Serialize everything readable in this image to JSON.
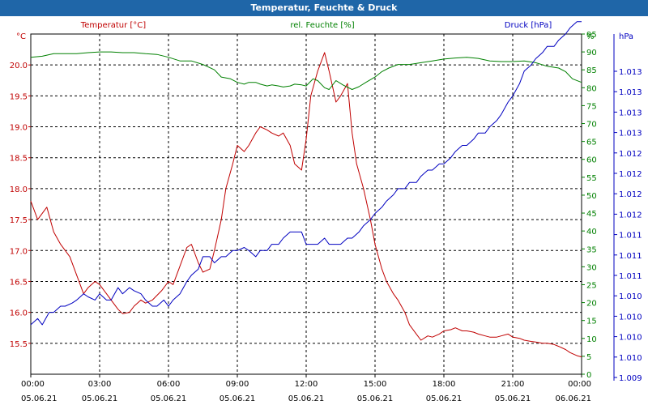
{
  "window": {
    "title": "Temperatur, Feuchte & Druck"
  },
  "chart_data": {
    "type": "line",
    "title": "Temperatur, Feuchte & Druck",
    "grid": true,
    "x_ticks": [
      {
        "time": "00:00",
        "date": "05.06.21"
      },
      {
        "time": "03:00",
        "date": "05.06.21"
      },
      {
        "time": "06:00",
        "date": "05.06.21"
      },
      {
        "time": "09:00",
        "date": "05.06.21"
      },
      {
        "time": "12:00",
        "date": "05.06.21"
      },
      {
        "time": "15:00",
        "date": "05.06.21"
      },
      {
        "time": "18:00",
        "date": "05.06.21"
      },
      {
        "time": "21:00",
        "date": "05.06.21"
      },
      {
        "time": "00:00",
        "date": "06.06.21"
      }
    ],
    "xlim": [
      0,
      24
    ],
    "axes": {
      "temperature": {
        "label": "Temperatur [°C]",
        "unit": "°C",
        "color": "#c00000",
        "ylim": [
          15.0,
          20.5
        ],
        "ticks": [
          "15.5",
          "16.0",
          "16.5",
          "17.0",
          "17.5",
          "18.0",
          "18.5",
          "19.0",
          "19.5",
          "20.0"
        ]
      },
      "humidity": {
        "label": "rel. Feuchte [%]",
        "unit": "%",
        "color": "#008000",
        "ylim": [
          0,
          95
        ],
        "ticks": [
          "0",
          "5",
          "10",
          "15",
          "20",
          "25",
          "30",
          "35",
          "40",
          "45",
          "50",
          "55",
          "60",
          "65",
          "70",
          "75",
          "80",
          "85",
          "90",
          "95"
        ]
      },
      "pressure": {
        "label": "Druck [hPa]",
        "unit": "hPa",
        "color": "#0000c0",
        "ylim": [
          1.0085,
          1.014
        ],
        "ticks": [
          "1.009",
          "1.010",
          "1.010",
          "1.010",
          "1.010",
          "1.011",
          "1.011",
          "1.011",
          "1.012",
          "1.012",
          "1.012",
          "1.012",
          "1.013",
          "1.013",
          "1.013",
          "1.013"
        ]
      }
    },
    "series": [
      {
        "name": "Temperatur",
        "axis": "temperature",
        "x": [
          0,
          0.3,
          0.7,
          1,
          1.3,
          1.7,
          2,
          2.3,
          2.5,
          2.8,
          3,
          3.3,
          3.5,
          3.8,
          4,
          4.3,
          4.5,
          4.8,
          5,
          5.3,
          5.7,
          6,
          6.2,
          6.5,
          6.8,
          7,
          7.3,
          7.5,
          7.8,
          8,
          8.3,
          8.5,
          8.8,
          9,
          9.3,
          9.5,
          9.8,
          10,
          10.3,
          10.5,
          10.8,
          11,
          11.3,
          11.5,
          11.8,
          12,
          12.2,
          12.5,
          12.8,
          13,
          13.3,
          13.5,
          13.8,
          14,
          14.2,
          14.5,
          14.8,
          15,
          15.3,
          15.5,
          15.8,
          16,
          16.3,
          16.5,
          16.8,
          17,
          17.3,
          17.5,
          17.8,
          18,
          18.3,
          18.5,
          18.8,
          19,
          19.3,
          19.5,
          19.8,
          20,
          20.3,
          20.5,
          20.8,
          21,
          21.3,
          21.5,
          21.8,
          22,
          22.3,
          22.5,
          22.8,
          23,
          23.3,
          23.5,
          23.8,
          24
        ],
        "values": [
          17.8,
          17.5,
          17.7,
          17.3,
          17.1,
          16.9,
          16.6,
          16.3,
          16.4,
          16.5,
          16.45,
          16.3,
          16.2,
          16.05,
          15.98,
          16.0,
          16.1,
          16.2,
          16.15,
          16.2,
          16.35,
          16.5,
          16.45,
          16.75,
          17.05,
          17.1,
          16.8,
          16.65,
          16.7,
          17.0,
          17.5,
          18.0,
          18.4,
          18.7,
          18.6,
          18.7,
          18.9,
          19.0,
          18.95,
          18.9,
          18.85,
          18.9,
          18.7,
          18.4,
          18.3,
          18.8,
          19.5,
          19.9,
          20.2,
          19.9,
          19.4,
          19.5,
          19.7,
          18.9,
          18.4,
          18.0,
          17.5,
          17.1,
          16.7,
          16.5,
          16.3,
          16.2,
          16.0,
          15.8,
          15.65,
          15.55,
          15.62,
          15.6,
          15.65,
          15.7,
          15.72,
          15.75,
          15.7,
          15.7,
          15.68,
          15.65,
          15.62,
          15.6,
          15.6,
          15.62,
          15.65,
          15.6,
          15.58,
          15.55,
          15.53,
          15.52,
          15.5,
          15.5,
          15.48,
          15.45,
          15.4,
          15.35,
          15.3,
          15.28
        ],
        "color": "#c00000"
      },
      {
        "name": "rel. Feuchte",
        "axis": "humidity",
        "x": [
          0,
          0.5,
          1,
          1.5,
          2,
          2.5,
          3,
          3.5,
          4,
          4.5,
          5,
          5.5,
          6,
          6.5,
          7,
          7.5,
          8,
          8.3,
          8.7,
          9,
          9.3,
          9.5,
          9.8,
          10,
          10.3,
          10.5,
          10.8,
          11,
          11.3,
          11.5,
          11.8,
          12,
          12.3,
          12.5,
          12.8,
          13,
          13.3,
          13.6,
          14,
          14.3,
          14.6,
          15,
          15.3,
          15.6,
          16,
          16.5,
          17,
          17.5,
          18,
          18.5,
          19,
          19.5,
          20,
          20.5,
          21,
          21.5,
          22,
          22.5,
          23,
          23.3,
          23.6,
          24
        ],
        "values": [
          88.5,
          88.8,
          89.5,
          89.5,
          89.5,
          89.8,
          90,
          90,
          89.8,
          89.8,
          89.5,
          89.3,
          88.5,
          87.5,
          87.5,
          86.5,
          85,
          83,
          82.5,
          81.5,
          81,
          81.5,
          81.5,
          81,
          80.5,
          80.8,
          80.5,
          80.2,
          80.5,
          81,
          80.8,
          80.5,
          82.5,
          82,
          80,
          79.5,
          82,
          80.8,
          79.5,
          80.3,
          81.5,
          83,
          84.5,
          85.5,
          86.5,
          86.5,
          87,
          87.5,
          88,
          88.3,
          88.5,
          88.2,
          87.5,
          87.3,
          87.3,
          87.5,
          87,
          86,
          85.5,
          84.5,
          82.5,
          81.5
        ],
        "color": "#008000"
      },
      {
        "name": "Druck",
        "axis": "pressure",
        "x": [
          0,
          0.3,
          0.5,
          0.8,
          1,
          1.3,
          1.5,
          1.8,
          2,
          2.3,
          2.5,
          2.8,
          3,
          3.3,
          3.5,
          3.8,
          4,
          4.3,
          4.5,
          4.8,
          5,
          5.3,
          5.5,
          5.8,
          6,
          6.2,
          6.5,
          6.8,
          7,
          7.3,
          7.5,
          7.8,
          8,
          8.3,
          8.5,
          8.8,
          9,
          9.3,
          9.5,
          9.8,
          10,
          10.3,
          10.5,
          10.8,
          11,
          11.3,
          11.5,
          11.8,
          12,
          12.3,
          12.5,
          12.8,
          13,
          13.3,
          13.5,
          13.8,
          14,
          14.3,
          14.5,
          14.8,
          15,
          15.3,
          15.5,
          15.8,
          16,
          16.3,
          16.5,
          16.8,
          17,
          17.3,
          17.5,
          17.8,
          18,
          18.3,
          18.5,
          18.8,
          19,
          19.3,
          19.5,
          19.8,
          20,
          20.3,
          20.5,
          20.8,
          21,
          21.3,
          21.5,
          21.8,
          22,
          22.3,
          22.5,
          22.8,
          23,
          23.3,
          23.5,
          23.8,
          24
        ],
        "values": [
          1.0093,
          1.0094,
          1.0093,
          1.0095,
          1.0095,
          1.0096,
          1.0096,
          1.00965,
          1.0097,
          1.0098,
          1.00975,
          1.0097,
          1.0098,
          1.0097,
          1.0097,
          1.0099,
          1.0098,
          1.0099,
          1.00985,
          1.0098,
          1.0097,
          1.0096,
          1.0096,
          1.0097,
          1.0096,
          1.0097,
          1.0098,
          1.01,
          1.0101,
          1.0102,
          1.0104,
          1.0104,
          1.0103,
          1.0104,
          1.0104,
          1.0105,
          1.0105,
          1.01055,
          1.0105,
          1.0104,
          1.0105,
          1.0105,
          1.0106,
          1.0106,
          1.0107,
          1.0108,
          1.0108,
          1.0108,
          1.0106,
          1.0106,
          1.0106,
          1.0107,
          1.0106,
          1.0106,
          1.0106,
          1.0107,
          1.0107,
          1.0108,
          1.0109,
          1.011,
          1.0111,
          1.0112,
          1.0113,
          1.0114,
          1.0115,
          1.0115,
          1.0116,
          1.0116,
          1.0117,
          1.0118,
          1.0118,
          1.0119,
          1.0119,
          1.012,
          1.0121,
          1.0122,
          1.0122,
          1.0123,
          1.0124,
          1.0124,
          1.0125,
          1.0126,
          1.0127,
          1.0129,
          1.013,
          1.0132,
          1.0134,
          1.0135,
          1.0136,
          1.0137,
          1.0138,
          1.0138,
          1.0139,
          1.014,
          1.0141,
          1.0142,
          1.0142
        ],
        "color": "#0000c0"
      }
    ]
  }
}
